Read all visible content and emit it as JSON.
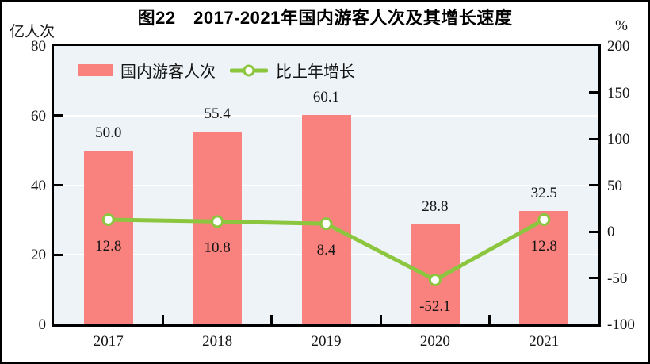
{
  "title": "图22　2017-2021年国内游客人次及其增长速度",
  "axes": {
    "left_unit": "亿人次",
    "right_unit": "%",
    "left_ticks": [
      0,
      20,
      40,
      60,
      80
    ],
    "right_ticks": [
      -100,
      -50,
      0,
      50,
      100,
      150,
      200
    ]
  },
  "legend": [
    {
      "label": "国内游客人次",
      "type": "bar",
      "color": "#f9827e"
    },
    {
      "label": "比上年增长",
      "type": "line",
      "color": "#8cc63f"
    }
  ],
  "chart_data": {
    "type": "bar",
    "title": "图22　2017-2021年国内游客人次及其增长速度",
    "categories": [
      "2017",
      "2018",
      "2019",
      "2020",
      "2021"
    ],
    "series": [
      {
        "name": "国内游客人次",
        "type": "bar",
        "axis": "left",
        "unit": "亿人次",
        "color": "#f9827e",
        "values": [
          50.0,
          55.4,
          60.1,
          28.8,
          32.5
        ],
        "value_labels": [
          "50.0",
          "55.4",
          "60.1",
          "28.8",
          "32.5"
        ]
      },
      {
        "name": "比上年增长",
        "type": "line",
        "axis": "right",
        "unit": "%",
        "color": "#8cc63f",
        "marker": "circle-white-fill",
        "values": [
          12.8,
          10.8,
          8.4,
          -52.1,
          12.8
        ],
        "value_labels": [
          "12.8",
          "10.8",
          "8.4",
          "-52.1",
          "12.8"
        ]
      }
    ],
    "left_ylim": [
      0,
      80
    ],
    "right_ylim": [
      -100,
      200
    ],
    "grid": "horizontal-white-at-left-ticks",
    "plot_bg": "#edf3f6",
    "legend_position": "top-left-inside"
  }
}
